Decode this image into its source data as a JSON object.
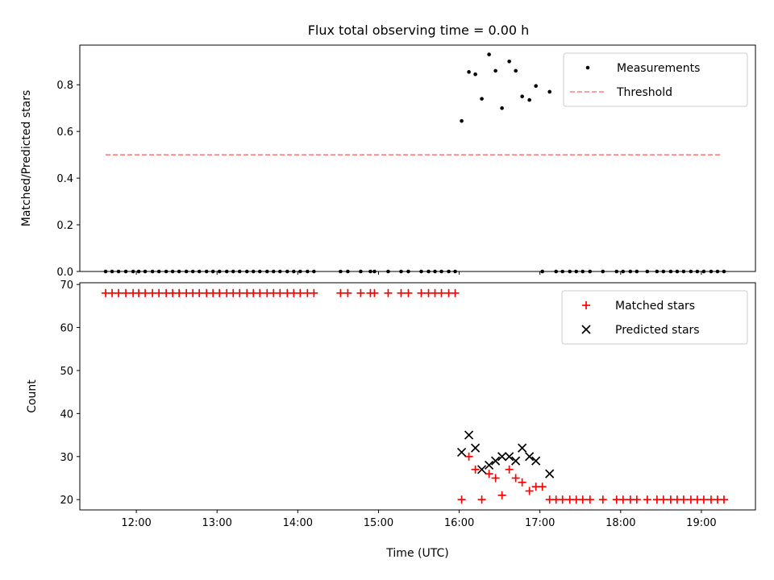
{
  "figure": {
    "title": "Flux total observing time = 0.00 h"
  },
  "chart_data": [
    {
      "panel": "top",
      "type": "scatter",
      "ylabel": "Matched/Predicted stars",
      "xlim": [
        11.3,
        19.67
      ],
      "ylim": [
        0,
        0.97
      ],
      "yticks": [
        0.0,
        0.2,
        0.4,
        0.6,
        0.8
      ],
      "ytick_labels": [
        "0.0",
        "0.2",
        "0.4",
        "0.6",
        "0.8"
      ],
      "xticks": [
        12,
        13,
        14,
        15,
        16,
        17,
        18,
        19
      ],
      "xtick_labels_visible": false,
      "legend_position": "top-right",
      "series": [
        {
          "name": "Measurements",
          "marker": "dot",
          "color": "#000000",
          "x": [
            11.62,
            11.7,
            11.78,
            11.87,
            11.96,
            12.03,
            12.11,
            12.2,
            12.28,
            12.37,
            12.45,
            12.53,
            12.62,
            12.7,
            12.78,
            12.87,
            12.95,
            13.03,
            13.12,
            13.2,
            13.28,
            13.37,
            13.45,
            13.53,
            13.62,
            13.7,
            13.78,
            13.87,
            13.95,
            14.03,
            14.12,
            14.2,
            14.53,
            14.62,
            14.78,
            14.9,
            14.95,
            15.12,
            15.28,
            15.37,
            15.53,
            15.62,
            15.7,
            15.78,
            15.87,
            15.95,
            16.03,
            16.12,
            16.2,
            16.28,
            16.37,
            16.45,
            16.53,
            16.62,
            16.7,
            16.78,
            16.87,
            16.95,
            17.12,
            17.03,
            17.2,
            17.28,
            17.37,
            17.45,
            17.53,
            17.62,
            17.78,
            17.95,
            18.03,
            18.12,
            18.2,
            18.33,
            18.45,
            18.53,
            18.62,
            18.7,
            18.78,
            18.87,
            18.95,
            19.03,
            19.12,
            19.2,
            19.28
          ],
          "y": [
            0,
            0,
            0,
            0,
            0,
            0,
            0,
            0,
            0,
            0,
            0,
            0,
            0,
            0,
            0,
            0,
            0,
            0,
            0,
            0,
            0,
            0,
            0,
            0,
            0,
            0,
            0,
            0,
            0,
            0,
            0,
            0,
            0,
            0,
            0,
            0,
            0,
            0,
            0,
            0,
            0,
            0,
            0,
            0,
            0,
            0,
            0.645,
            0.855,
            0.845,
            0.74,
            0.93,
            0.86,
            0.7,
            0.9,
            0.86,
            0.75,
            0.735,
            0.795,
            0.77,
            0,
            0,
            0,
            0,
            0,
            0,
            0,
            0,
            0,
            0,
            0,
            0,
            0,
            0,
            0,
            0,
            0,
            0,
            0,
            0,
            0,
            0,
            0,
            0
          ]
        },
        {
          "name": "Threshold",
          "line_style": "dashed",
          "color": "#ff7f7f",
          "x": [
            11.62,
            19.23
          ],
          "y": [
            0.5,
            0.5
          ]
        }
      ]
    },
    {
      "panel": "bottom",
      "type": "scatter",
      "xlabel": "Time (UTC)",
      "ylabel": "Count",
      "xlim": [
        11.3,
        19.67
      ],
      "ylim": [
        17.6,
        70.4
      ],
      "yticks": [
        20,
        30,
        40,
        50,
        60,
        70
      ],
      "ytick_labels": [
        "20",
        "30",
        "40",
        "50",
        "60",
        "70"
      ],
      "xticks": [
        12,
        13,
        14,
        15,
        16,
        17,
        18,
        19
      ],
      "xtick_labels": [
        "12:00",
        "13:00",
        "14:00",
        "15:00",
        "16:00",
        "17:00",
        "18:00",
        "19:00"
      ],
      "legend_position": "top-right",
      "series": [
        {
          "name": "Matched stars",
          "marker": "plus",
          "color": "#ff0000",
          "x": [
            11.62,
            11.7,
            11.78,
            11.87,
            11.96,
            12.03,
            12.11,
            12.2,
            12.28,
            12.37,
            12.45,
            12.53,
            12.62,
            12.7,
            12.78,
            12.87,
            12.95,
            13.03,
            13.12,
            13.2,
            13.28,
            13.37,
            13.45,
            13.53,
            13.62,
            13.7,
            13.78,
            13.87,
            13.95,
            14.03,
            14.12,
            14.2,
            14.53,
            14.62,
            14.78,
            14.9,
            14.95,
            15.12,
            15.28,
            15.37,
            15.53,
            15.62,
            15.7,
            15.78,
            15.87,
            15.95,
            16.03,
            16.12,
            16.2,
            16.28,
            16.37,
            16.45,
            16.53,
            16.62,
            16.7,
            16.78,
            16.87,
            16.95,
            17.03,
            17.12,
            17.2,
            17.28,
            17.37,
            17.45,
            17.53,
            17.62,
            17.78,
            17.95,
            18.03,
            18.12,
            18.2,
            18.33,
            18.45,
            18.53,
            18.62,
            18.7,
            18.78,
            18.87,
            18.95,
            19.03,
            19.12,
            19.2,
            19.28
          ],
          "y": [
            68,
            68,
            68,
            68,
            68,
            68,
            68,
            68,
            68,
            68,
            68,
            68,
            68,
            68,
            68,
            68,
            68,
            68,
            68,
            68,
            68,
            68,
            68,
            68,
            68,
            68,
            68,
            68,
            68,
            68,
            68,
            68,
            68,
            68,
            68,
            68,
            68,
            68,
            68,
            68,
            68,
            68,
            68,
            68,
            68,
            68,
            20,
            30,
            27,
            20,
            26,
            25,
            21,
            27,
            25,
            24,
            22,
            23,
            23,
            20,
            20,
            20,
            20,
            20,
            20,
            20,
            20,
            20,
            20,
            20,
            20,
            20,
            20,
            20,
            20,
            20,
            20,
            20,
            20,
            20,
            20,
            20,
            20
          ]
        },
        {
          "name": "Predicted stars",
          "marker": "x",
          "color": "#000000",
          "x": [
            16.03,
            16.12,
            16.2,
            16.28,
            16.37,
            16.45,
            16.53,
            16.62,
            16.7,
            16.78,
            16.87,
            16.95,
            17.12
          ],
          "y": [
            31,
            35,
            32,
            27,
            28,
            29,
            30,
            30,
            29,
            32,
            30,
            29,
            26
          ]
        }
      ]
    }
  ]
}
